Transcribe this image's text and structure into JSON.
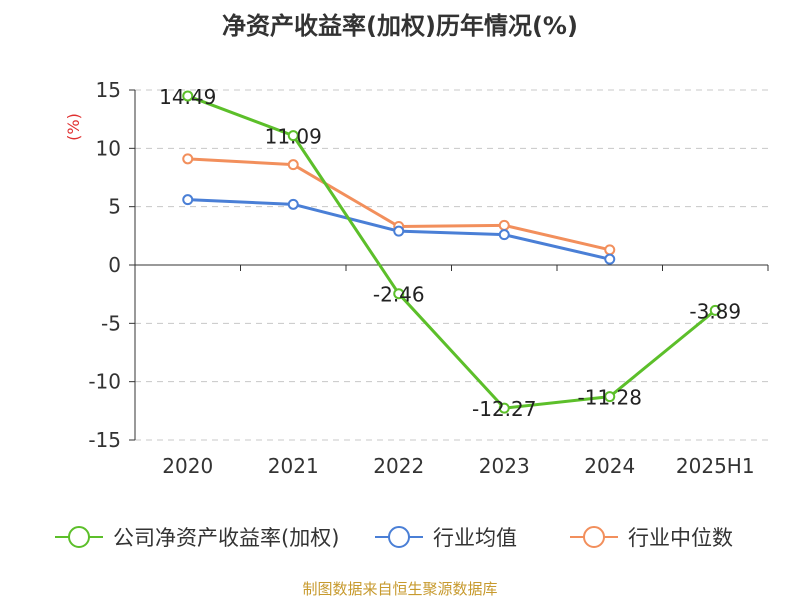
{
  "title": "净资产收益率(加权)历年情况(%)",
  "source": "制图数据来自恒生聚源数据库",
  "chart_data": {
    "type": "line",
    "title": "净资产收益率(加权)历年情况(%)",
    "ylabel": "(%)",
    "xlabel": "",
    "categories": [
      "2020",
      "2021",
      "2022",
      "2023",
      "2024",
      "2025H1"
    ],
    "ylim": [
      -15,
      15
    ],
    "yticks": [
      15,
      10,
      5,
      0,
      -5,
      -10,
      -15
    ],
    "grid": true,
    "legend_position": "bottom",
    "series": [
      {
        "name": "公司净资产收益率(加权)",
        "color": "#5cbf2a",
        "values": [
          14.49,
          11.09,
          -2.46,
          -12.27,
          -11.28,
          -3.89
        ],
        "labels": [
          "14.49",
          "11.09",
          "-2.46",
          "-12.27",
          "-11.28",
          "-3.89"
        ]
      },
      {
        "name": "行业均值",
        "color": "#4a7fd6",
        "values": [
          5.6,
          5.2,
          2.9,
          2.6,
          0.5,
          null
        ]
      },
      {
        "name": "行业中位数",
        "color": "#f28f5c",
        "values": [
          9.1,
          8.6,
          3.3,
          3.4,
          1.3,
          null
        ]
      }
    ]
  }
}
